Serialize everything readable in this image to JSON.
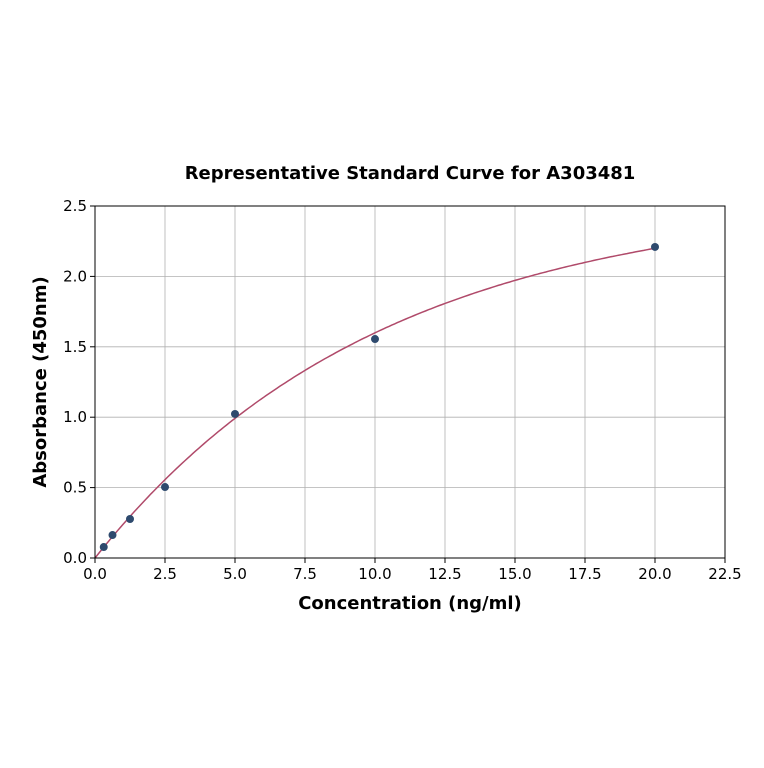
{
  "chart_data": {
    "type": "scatter",
    "title": "Representative Standard Curve for A303481",
    "xlabel": "Concentration (ng/ml)",
    "ylabel": "Absorbance (450nm)",
    "xlim": [
      0,
      22.5
    ],
    "ylim": [
      0,
      2.5
    ],
    "xticks": [
      "0.0",
      "2.5",
      "5.0",
      "7.5",
      "10.0",
      "12.5",
      "15.0",
      "17.5",
      "20.0",
      "22.5"
    ],
    "yticks": [
      "0.0",
      "0.5",
      "1.0",
      "1.5",
      "2.0",
      "2.5"
    ],
    "grid": true,
    "series": [
      {
        "name": "standards",
        "x": [
          0.3125,
          0.625,
          1.25,
          2.5,
          5,
          10,
          20
        ],
        "y": [
          0.078,
          0.163,
          0.277,
          0.504,
          1.023,
          1.555,
          2.209
        ],
        "color": "#2e4a6e"
      },
      {
        "name": "fit",
        "type": "line",
        "color": "#b04a6a",
        "x_range": [
          0,
          20
        ]
      }
    ]
  }
}
